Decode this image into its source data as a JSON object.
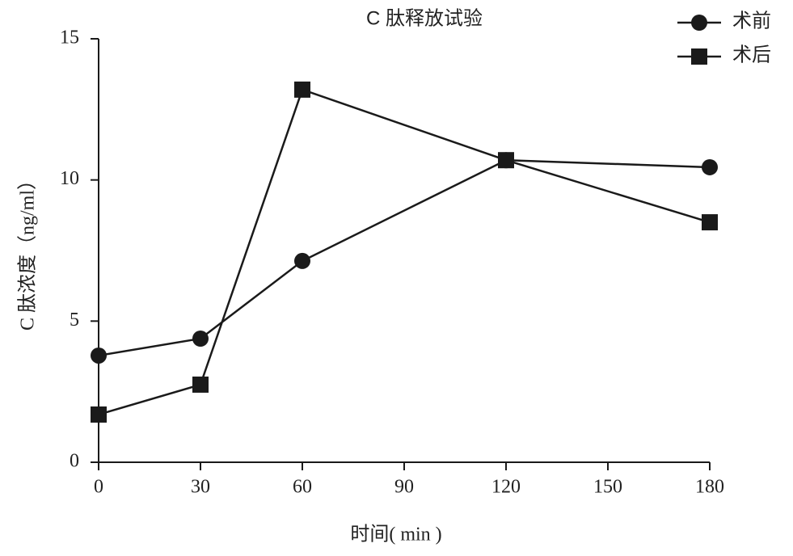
{
  "chart_data": {
    "type": "line",
    "title": "C 肽释放试验",
    "x_label": "时间( min )",
    "y_label": "C 肽浓度（ng/ml）",
    "x": [
      0,
      30,
      60,
      120,
      180
    ],
    "series": [
      {
        "name": "术前",
        "color": "#1a1a1a",
        "marker": "circle",
        "values": [
          3.78,
          4.38,
          7.13,
          10.7,
          10.45
        ]
      },
      {
        "name": "术后",
        "color": "#1a1a1a",
        "marker": "square",
        "values": [
          1.69,
          2.75,
          13.2,
          10.7,
          8.5
        ]
      }
    ],
    "xlim": [
      0,
      180
    ],
    "xticks": [
      0,
      30,
      60,
      90,
      120,
      150,
      180
    ],
    "ylim": [
      0,
      15
    ],
    "yticks": [
      0,
      5,
      10,
      15
    ],
    "legend": "top-right"
  }
}
